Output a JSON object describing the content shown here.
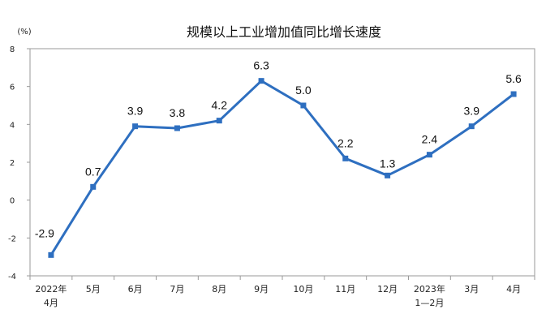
{
  "chart_data": {
    "type": "line",
    "title": "规模以上工业增加值同比增长速度",
    "unit_label": "(%)",
    "xlabel": "",
    "ylabel": "",
    "ylim": [
      -4,
      8
    ],
    "yticks": [
      -4,
      -2,
      0,
      2,
      4,
      6,
      8
    ],
    "ytick_labels": [
      "-4",
      "-2",
      "0",
      "2",
      "4",
      "6",
      "8"
    ],
    "grid": false,
    "legend": "none",
    "categories": [
      [
        "2022年",
        "4月"
      ],
      [
        "5月"
      ],
      [
        "6月"
      ],
      [
        "7月"
      ],
      [
        "8月"
      ],
      [
        "9月"
      ],
      [
        "10月"
      ],
      [
        "11月"
      ],
      [
        "12月"
      ],
      [
        "2023年",
        "1—2月"
      ],
      [
        "3月"
      ],
      [
        "4月"
      ]
    ],
    "values": [
      -2.9,
      0.7,
      3.9,
      3.8,
      4.2,
      6.3,
      5.0,
      2.2,
      1.3,
      2.4,
      3.9,
      5.6
    ],
    "value_labels": [
      "-2.9",
      "0.7",
      "3.9",
      "3.8",
      "4.2",
      "6.3",
      "5.0",
      "2.2",
      "1.3",
      "2.4",
      "3.9",
      "5.6"
    ],
    "colors": {
      "line": "#2e6fc0",
      "marker": "#2e6fc0",
      "frame": "#9a9a9a"
    }
  }
}
